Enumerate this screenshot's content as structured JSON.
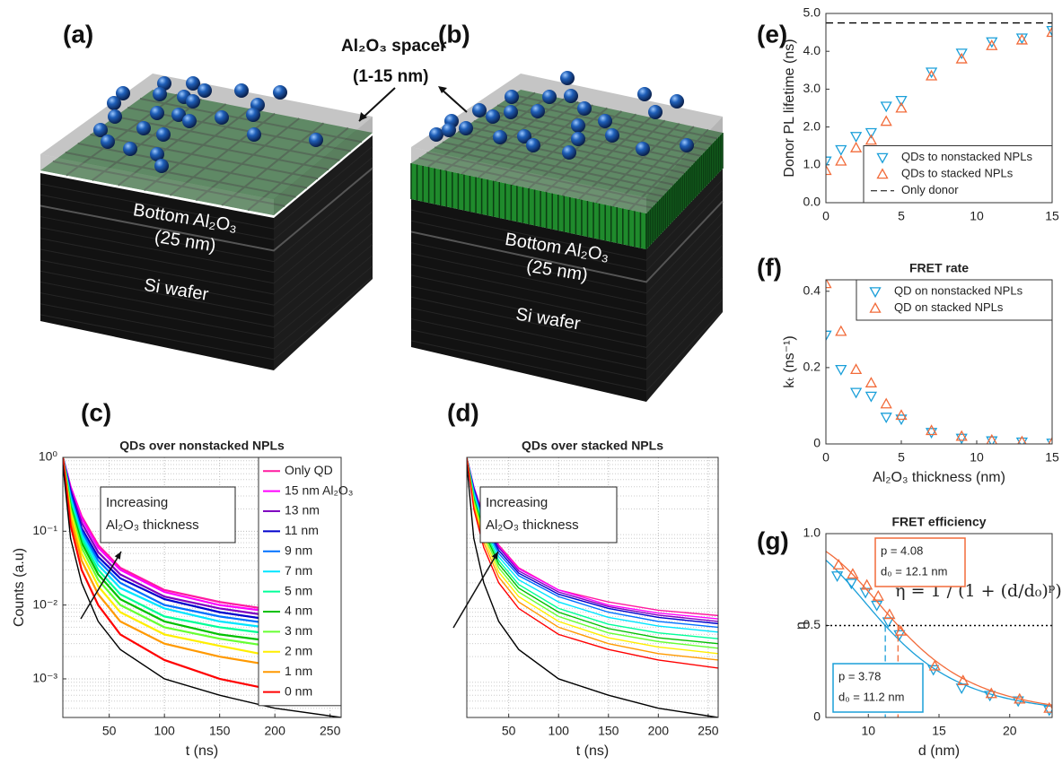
{
  "illustrations": [
    {
      "panel_label": "(a)",
      "top_label": "Bottom Al₂O₃",
      "thickness_label": "(25 nm)",
      "base_label": "Si wafer"
    },
    {
      "panel_label": "(b)",
      "top_label": "Bottom Al₂O₃",
      "thickness_label": "(25 nm)",
      "base_label": "Si wafer"
    }
  ],
  "spacer_label": [
    "Al₂O₃  spacer",
    "(1-15 nm)"
  ],
  "chart_data": [
    {
      "type": "line",
      "panel_label": "(c)",
      "title": "QDs over nonstacked NPLs",
      "x_label": "t (ns)",
      "y_label": "Counts (a.u)",
      "yscale": "log",
      "grid": true,
      "legend": "upper right",
      "annotation": [
        "Increasing",
        "Al₂O₃ thickness"
      ],
      "xlim": [
        8,
        260
      ],
      "xticks": [
        50,
        100,
        150,
        200,
        250
      ],
      "ylim": [
        0.0003,
        1
      ],
      "yticks": [
        {
          "value": 1,
          "label": "10⁰"
        },
        {
          "value": 0.1,
          "label": "10⁻¹"
        },
        {
          "value": 0.01,
          "label": "10⁻²"
        },
        {
          "value": 0.001,
          "label": "10⁻³"
        }
      ],
      "x": [
        8,
        15,
        25,
        40,
        60,
        100,
        150,
        200,
        260
      ],
      "series": [
        {
          "name": "Only QD",
          "color": "#ff1aa0",
          "values": [
            1,
            0.4,
            0.16,
            0.065,
            0.032,
            0.016,
            0.011,
            0.0085,
            0.0072
          ]
        },
        {
          "name": "15 nm Al₂O₃",
          "color": "#ff00ff",
          "values": [
            1,
            0.4,
            0.15,
            0.06,
            0.03,
            0.015,
            0.01,
            0.008,
            0.007
          ]
        },
        {
          "name": "13 nm",
          "color": "#8000c0",
          "values": [
            1,
            0.37,
            0.13,
            0.052,
            0.026,
            0.013,
            0.009,
            0.007,
            0.006
          ]
        },
        {
          "name": "11 nm",
          "color": "#0000cc",
          "values": [
            1,
            0.34,
            0.11,
            0.045,
            0.023,
            0.012,
            0.008,
            0.0062,
            0.0054
          ]
        },
        {
          "name": "9 nm",
          "color": "#0070ff",
          "values": [
            1,
            0.31,
            0.1,
            0.04,
            0.02,
            0.01,
            0.007,
            0.0055,
            0.0047
          ]
        },
        {
          "name": "7 nm",
          "color": "#00e5ff",
          "values": [
            1,
            0.28,
            0.09,
            0.035,
            0.017,
            0.009,
            0.006,
            0.0048,
            0.004
          ]
        },
        {
          "name": "5 nm",
          "color": "#00ff99",
          "values": [
            1,
            0.25,
            0.08,
            0.03,
            0.014,
            0.007,
            0.005,
            0.004,
            0.0033
          ]
        },
        {
          "name": "4 nm",
          "color": "#00c000",
          "values": [
            1,
            0.22,
            0.07,
            0.026,
            0.012,
            0.006,
            0.004,
            0.0032,
            0.0027
          ]
        },
        {
          "name": "3 nm",
          "color": "#66ff33",
          "values": [
            1,
            0.2,
            0.06,
            0.022,
            0.01,
            0.005,
            0.0035,
            0.0027,
            0.0022
          ]
        },
        {
          "name": "2 nm",
          "color": "#ffee00",
          "values": [
            1,
            0.18,
            0.05,
            0.018,
            0.008,
            0.004,
            0.0028,
            0.002,
            0.0017
          ]
        },
        {
          "name": "1 nm",
          "color": "#ff9900",
          "values": [
            1,
            0.15,
            0.04,
            0.014,
            0.006,
            0.003,
            0.002,
            0.0015,
            0.0012
          ]
        },
        {
          "name": "0 nm",
          "color": "#ff0000",
          "values": [
            1,
            0.12,
            0.03,
            0.01,
            0.004,
            0.0018,
            0.001,
            0.0007,
            0.0005
          ]
        },
        {
          "color": "#000000",
          "values": [
            0.8,
            0.08,
            0.02,
            0.006,
            0.0025,
            0.001,
            0.0006,
            0.0004,
            0.0003
          ]
        }
      ]
    },
    {
      "type": "line",
      "panel_label": "(d)",
      "title": "QDs over stacked NPLs",
      "x_label": "t (ns)",
      "yscale": "log",
      "grid": true,
      "annotation": [
        "Increasing",
        "Al₂O₃ thickness"
      ],
      "xlim": [
        8,
        260
      ],
      "xticks": [
        50,
        100,
        150,
        200,
        250
      ],
      "ylim": [
        0.0003,
        1
      ],
      "x": [
        8,
        15,
        25,
        40,
        60,
        100,
        150,
        200,
        260
      ],
      "series": [
        {
          "color": "#ff1aa0",
          "values": [
            1,
            0.4,
            0.16,
            0.065,
            0.032,
            0.016,
            0.011,
            0.0085,
            0.0072
          ]
        },
        {
          "color": "#ff00ff",
          "values": [
            1,
            0.4,
            0.155,
            0.062,
            0.031,
            0.016,
            0.01,
            0.0078,
            0.0065
          ]
        },
        {
          "color": "#8000c0",
          "values": [
            1,
            0.39,
            0.15,
            0.06,
            0.029,
            0.015,
            0.0095,
            0.0073,
            0.006
          ]
        },
        {
          "color": "#0000cc",
          "values": [
            1,
            0.38,
            0.14,
            0.055,
            0.027,
            0.014,
            0.009,
            0.0068,
            0.0056
          ]
        },
        {
          "color": "#0070ff",
          "values": [
            1,
            0.36,
            0.13,
            0.05,
            0.025,
            0.013,
            0.008,
            0.006,
            0.005
          ]
        },
        {
          "color": "#00e5ff",
          "values": [
            1,
            0.33,
            0.12,
            0.045,
            0.022,
            0.011,
            0.0068,
            0.0052,
            0.0043
          ]
        },
        {
          "color": "#00ff99",
          "values": [
            1,
            0.3,
            0.11,
            0.04,
            0.019,
            0.009,
            0.0055,
            0.0042,
            0.0035
          ]
        },
        {
          "color": "#00c000",
          "values": [
            1,
            0.28,
            0.1,
            0.036,
            0.017,
            0.008,
            0.0048,
            0.0036,
            0.003
          ]
        },
        {
          "color": "#66ff33",
          "values": [
            1,
            0.26,
            0.09,
            0.032,
            0.015,
            0.007,
            0.0042,
            0.0032,
            0.0026
          ]
        },
        {
          "color": "#ffee00",
          "values": [
            1,
            0.24,
            0.08,
            0.028,
            0.013,
            0.006,
            0.0036,
            0.0027,
            0.0022
          ]
        },
        {
          "color": "#ff9900",
          "values": [
            1,
            0.22,
            0.07,
            0.024,
            0.011,
            0.005,
            0.003,
            0.0022,
            0.0018
          ]
        },
        {
          "color": "#ff0000",
          "values": [
            1,
            0.2,
            0.06,
            0.02,
            0.009,
            0.004,
            0.0025,
            0.0018,
            0.0014
          ]
        },
        {
          "color": "#000000",
          "values": [
            0.8,
            0.08,
            0.02,
            0.006,
            0.0025,
            0.001,
            0.0006,
            0.0004,
            0.0003
          ]
        }
      ]
    },
    {
      "type": "scatter",
      "panel_label": "(e)",
      "y_label": "Donor PL lifetime (ns)",
      "grid": false,
      "legend": "lower right",
      "xlim": [
        0,
        15
      ],
      "xticks": [
        0,
        5,
        10,
        15
      ],
      "ylim": [
        0,
        5
      ],
      "yticks": [
        {
          "value": 0,
          "label": "0.0"
        },
        {
          "value": 1,
          "label": "1.0"
        },
        {
          "value": 2,
          "label": "2.0"
        },
        {
          "value": 3,
          "label": "3.0"
        },
        {
          "value": 4,
          "label": "4.0"
        },
        {
          "value": 5,
          "label": "5.0"
        }
      ],
      "x": [
        0,
        1,
        2,
        3,
        4,
        5,
        7,
        9,
        11,
        13,
        15
      ],
      "series": [
        {
          "name": "QDs to nonstacked NPLs",
          "color": "#1a9fd9",
          "marker": "triangle-down",
          "values": [
            1.1,
            1.4,
            1.75,
            1.85,
            2.55,
            2.7,
            3.45,
            3.95,
            4.25,
            4.35,
            4.55
          ]
        },
        {
          "name": "QDs to stacked NPLs",
          "color": "#f26b3a",
          "marker": "triangle-up",
          "values": [
            0.85,
            1.1,
            1.45,
            1.65,
            2.15,
            2.5,
            3.35,
            3.8,
            4.15,
            4.3,
            4.5
          ]
        }
      ],
      "reference": {
        "name": "Only donor",
        "value": 4.75,
        "color": "#000000"
      }
    },
    {
      "type": "scatter",
      "panel_label": "(f)",
      "title": "FRET rate",
      "x_label": "Al₂O₃ thickness (nm)",
      "y_label": "kₜ (ns⁻¹)",
      "grid": false,
      "legend": "upper right",
      "xlim": [
        0,
        15
      ],
      "xticks": [
        0,
        5,
        10,
        15
      ],
      "ylim": [
        0,
        0.43
      ],
      "yticks": [
        0,
        0.2,
        0.4
      ],
      "x": [
        0,
        1,
        2,
        3,
        4,
        5,
        7,
        9,
        11,
        13,
        15
      ],
      "series": [
        {
          "name": "QD on nonstacked NPLs",
          "color": "#1a9fd9",
          "marker": "triangle-down",
          "values": [
            0.285,
            0.195,
            0.135,
            0.125,
            0.07,
            0.065,
            0.03,
            0.015,
            0.008,
            0.005,
            0.002
          ]
        },
        {
          "name": "QD on stacked NPLs",
          "color": "#f26b3a",
          "marker": "triangle-up",
          "values": [
            0.42,
            0.295,
            0.195,
            0.16,
            0.105,
            0.075,
            0.035,
            0.02,
            0.01,
            0.006,
            0.003
          ]
        }
      ]
    },
    {
      "type": "scatter",
      "panel_label": "(g)",
      "title": "FRET efficiency",
      "x_label": "d (nm)",
      "y_label": "η",
      "grid": false,
      "equation": "η = 1 / (1 + (d/d₀)ᵖ)",
      "xlim": [
        7,
        23
      ],
      "xticks": [
        10,
        15,
        20
      ],
      "ylim": [
        0,
        1
      ],
      "yticks": [
        0,
        0.5,
        {
          "value": 1,
          "label": "1.0"
        }
      ],
      "threshold": 0.5,
      "series": [
        {
          "color": "#1a9fd9",
          "marker": "triangle-down",
          "x": [
            7.8,
            8.8,
            9.8,
            10.6,
            11.4,
            12.2,
            14.6,
            16.6,
            18.6,
            20.6,
            22.8
          ],
          "values": [
            0.77,
            0.73,
            0.68,
            0.61,
            0.52,
            0.45,
            0.26,
            0.16,
            0.12,
            0.09,
            0.04
          ],
          "fit": {
            "p": {
              "value": 3.78,
              "label": "p = 3.78"
            },
            "d0": {
              "value": 11.2,
              "label": "d₀ = 11.2 nm"
            }
          }
        },
        {
          "color": "#f26b3a",
          "marker": "triangle-up",
          "x": [
            7.9,
            8.9,
            9.9,
            10.7,
            11.5,
            12.3,
            14.7,
            16.7,
            18.7,
            20.7,
            22.8
          ],
          "values": [
            0.83,
            0.78,
            0.72,
            0.66,
            0.56,
            0.47,
            0.28,
            0.2,
            0.13,
            0.1,
            0.05
          ],
          "fit": {
            "p": {
              "value": 4.08,
              "label": "p = 4.08"
            },
            "d0": {
              "value": 12.1,
              "label": "d₀ = 12.1 nm"
            }
          }
        }
      ]
    }
  ]
}
